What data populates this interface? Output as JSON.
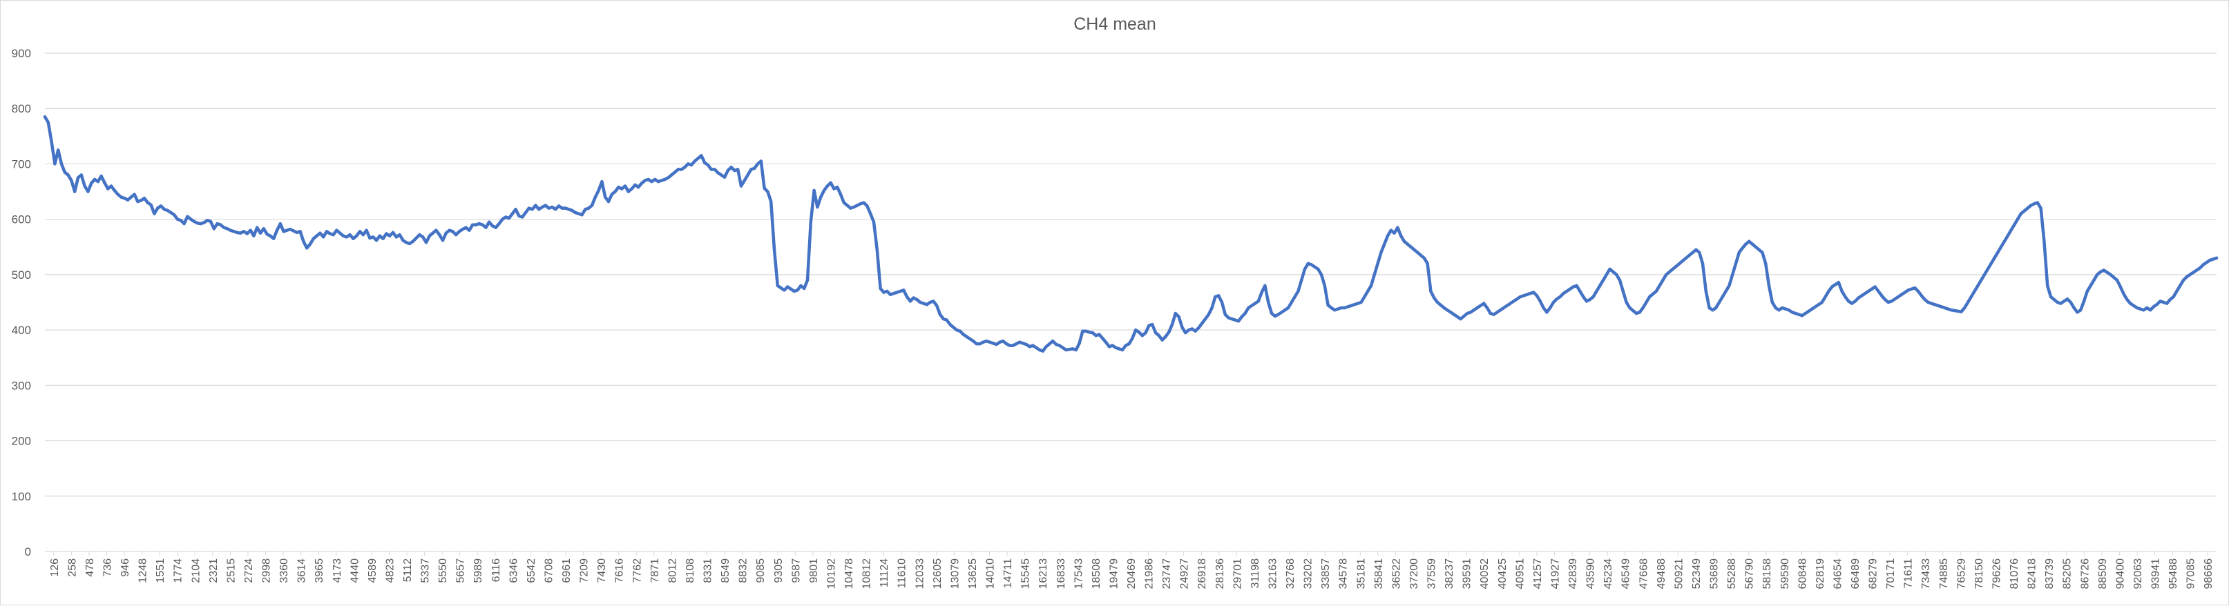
{
  "chart_data": {
    "type": "line",
    "title": "CH4 mean",
    "xlabel": "",
    "ylabel": "",
    "ylim": [
      0,
      900
    ],
    "yticks": [
      0,
      100,
      200,
      300,
      400,
      500,
      600,
      700,
      800,
      900
    ],
    "grid": true,
    "legend": "none",
    "line_color": "#4472C4",
    "grid_color": "#d9d9d9",
    "x_tick_labels": [
      "126",
      "258",
      "478",
      "736",
      "946",
      "1248",
      "1551",
      "1774",
      "2104",
      "2321",
      "2515",
      "2724",
      "2998",
      "3360",
      "3614",
      "3965",
      "4173",
      "4440",
      "4589",
      "4823",
      "5112",
      "5337",
      "5550",
      "5657",
      "5989",
      "6116",
      "6346",
      "6542",
      "6708",
      "6961",
      "7209",
      "7430",
      "7616",
      "7762",
      "7871",
      "8012",
      "8108",
      "8331",
      "8549",
      "8832",
      "9085",
      "9305",
      "9587",
      "9801",
      "10192",
      "10478",
      "10812",
      "11124",
      "11610",
      "12033",
      "12605",
      "13079",
      "13625",
      "14010",
      "14711",
      "15545",
      "16213",
      "16833",
      "17543",
      "18508",
      "19479",
      "20469",
      "21986",
      "23747",
      "24927",
      "26918",
      "28136",
      "29701",
      "31198",
      "32163",
      "32768",
      "33202",
      "33857",
      "34578",
      "35181",
      "35841",
      "36522",
      "37200",
      "37559",
      "38237",
      "39591",
      "40052",
      "40425",
      "40951",
      "41257",
      "41927",
      "42839",
      "43590",
      "45234",
      "46549",
      "47668",
      "49488",
      "50921",
      "52349",
      "53689",
      "55288",
      "56790",
      "58158",
      "59590",
      "60848",
      "62819",
      "64654",
      "66489",
      "68279",
      "70171",
      "71611",
      "73433",
      "74885",
      "76529",
      "78150",
      "79626",
      "81076",
      "82418",
      "83739",
      "85205",
      "86726",
      "88509",
      "90400",
      "92063",
      "93941",
      "95488",
      "97085",
      "98666"
    ],
    "values": [
      785,
      775,
      740,
      700,
      725,
      700,
      685,
      680,
      670,
      650,
      675,
      680,
      660,
      650,
      665,
      672,
      668,
      678,
      666,
      655,
      660,
      652,
      645,
      640,
      638,
      635,
      640,
      645,
      632,
      634,
      638,
      630,
      626,
      610,
      620,
      624,
      618,
      616,
      612,
      608,
      600,
      598,
      592,
      605,
      600,
      596,
      593,
      592,
      594,
      598,
      596,
      583,
      592,
      590,
      585,
      583,
      580,
      578,
      576,
      575,
      578,
      574,
      580,
      570,
      585,
      575,
      583,
      573,
      570,
      565,
      580,
      592,
      578,
      580,
      582,
      579,
      576,
      578,
      560,
      548,
      555,
      565,
      570,
      575,
      568,
      578,
      574,
      572,
      580,
      575,
      570,
      568,
      572,
      565,
      570,
      578,
      572,
      580,
      566,
      568,
      562,
      570,
      565,
      574,
      570,
      576,
      568,
      572,
      562,
      558,
      556,
      560,
      566,
      572,
      568,
      558,
      570,
      575,
      580,
      572,
      562,
      575,
      580,
      578,
      572,
      578,
      582,
      585,
      580,
      590,
      590,
      592,
      590,
      585,
      595,
      588,
      585,
      592,
      600,
      604,
      602,
      610,
      618,
      606,
      604,
      612,
      620,
      618,
      625,
      618,
      622,
      625,
      620,
      622,
      618,
      624,
      620,
      620,
      618,
      616,
      612,
      610,
      608,
      618,
      620,
      625,
      640,
      652,
      668,
      640,
      632,
      645,
      650,
      658,
      655,
      660,
      650,
      655,
      662,
      658,
      665,
      670,
      672,
      668,
      672,
      668,
      670,
      672,
      675,
      680,
      685,
      690,
      690,
      694,
      700,
      698,
      705,
      710,
      715,
      702,
      698,
      690,
      690,
      684,
      680,
      676,
      688,
      694,
      688,
      690,
      660,
      670,
      680,
      690,
      692,
      700,
      705,
      656,
      650,
      632,
      545,
      480,
      476,
      472,
      478,
      474,
      470,
      472,
      480,
      475,
      490,
      595,
      652,
      622,
      640,
      652,
      660,
      666,
      655,
      658,
      645,
      630,
      625,
      620,
      622,
      625,
      628,
      630,
      624,
      610,
      595,
      545,
      475,
      468,
      470,
      464,
      466,
      468,
      470,
      472,
      460,
      452,
      458,
      455,
      450,
      448,
      446,
      450,
      452,
      444,
      428,
      420,
      418,
      410,
      405,
      400,
      398,
      392,
      388,
      384,
      380,
      375,
      375,
      378,
      380,
      378,
      376,
      374,
      378,
      380,
      375,
      372,
      372,
      375,
      378,
      376,
      374,
      370,
      372,
      368,
      364,
      362,
      370,
      375,
      380,
      374,
      372,
      368,
      364,
      365,
      366,
      364,
      376,
      398,
      398,
      396,
      395,
      390,
      392,
      385,
      378,
      370,
      372,
      368,
      366,
      364,
      372,
      375,
      385,
      400,
      396,
      390,
      395,
      408,
      410,
      395,
      390,
      382,
      388,
      396,
      410,
      430,
      424,
      405,
      395,
      400,
      402,
      398,
      404,
      412,
      420,
      428,
      440,
      460,
      462,
      450,
      428,
      422,
      420,
      418,
      416,
      424,
      430,
      440,
      444,
      448,
      452,
      468,
      480,
      450,
      430,
      425,
      428,
      432,
      436,
      440,
      450,
      460,
      470,
      490,
      510,
      520,
      518,
      514,
      510,
      500,
      480,
      445,
      440,
      436,
      438,
      440,
      440,
      442,
      444,
      446,
      448,
      450,
      460,
      470,
      480,
      500,
      520,
      540,
      555,
      570,
      580,
      575,
      585,
      570,
      560,
      555,
      550,
      545,
      540,
      535,
      530,
      520,
      470,
      458,
      450,
      445,
      440,
      436,
      432,
      428,
      424,
      420,
      425,
      430,
      432,
      436,
      440,
      444,
      448,
      440,
      430,
      428,
      432,
      436,
      440,
      444,
      448,
      452,
      456,
      460,
      462,
      464,
      466,
      468,
      462,
      452,
      440,
      432,
      440,
      450,
      456,
      460,
      466,
      470,
      474,
      478,
      480,
      470,
      460,
      452,
      455,
      460,
      470,
      480,
      490,
      500,
      510,
      505,
      500,
      490,
      470,
      450,
      440,
      435,
      430,
      432,
      440,
      450,
      460,
      465,
      470,
      480,
      490,
      500,
      505,
      510,
      515,
      520,
      525,
      530,
      535,
      540,
      545,
      540,
      520,
      470,
      440,
      436,
      440,
      450,
      460,
      470,
      480,
      500,
      520,
      540,
      548,
      555,
      560,
      555,
      550,
      545,
      540,
      520,
      480,
      450,
      440,
      436,
      440,
      438,
      436,
      432,
      430,
      428,
      426,
      430,
      434,
      438,
      442,
      446,
      450,
      460,
      470,
      478,
      482,
      486,
      470,
      460,
      452,
      448,
      452,
      458,
      462,
      466,
      470,
      474,
      478,
      470,
      462,
      455,
      450,
      452,
      456,
      460,
      464,
      468,
      472,
      474,
      476,
      470,
      462,
      455,
      450,
      448,
      446,
      444,
      442,
      440,
      438,
      436,
      435,
      434,
      433,
      440,
      450,
      460,
      470,
      480,
      490,
      500,
      510,
      520,
      530,
      540,
      550,
      560,
      570,
      580,
      590,
      600,
      610,
      615,
      620,
      625,
      628,
      630,
      620,
      560,
      480,
      460,
      455,
      450,
      448,
      452,
      456,
      450,
      440,
      432,
      436,
      452,
      470,
      480,
      490,
      500,
      505,
      508,
      504,
      500,
      495,
      490,
      478,
      465,
      455,
      448,
      444,
      440,
      438,
      436,
      440,
      436,
      442,
      446,
      452,
      450,
      448,
      455,
      460,
      470,
      480,
      490,
      496,
      500,
      504,
      508,
      512,
      518,
      522,
      526,
      528,
      530
    ]
  }
}
